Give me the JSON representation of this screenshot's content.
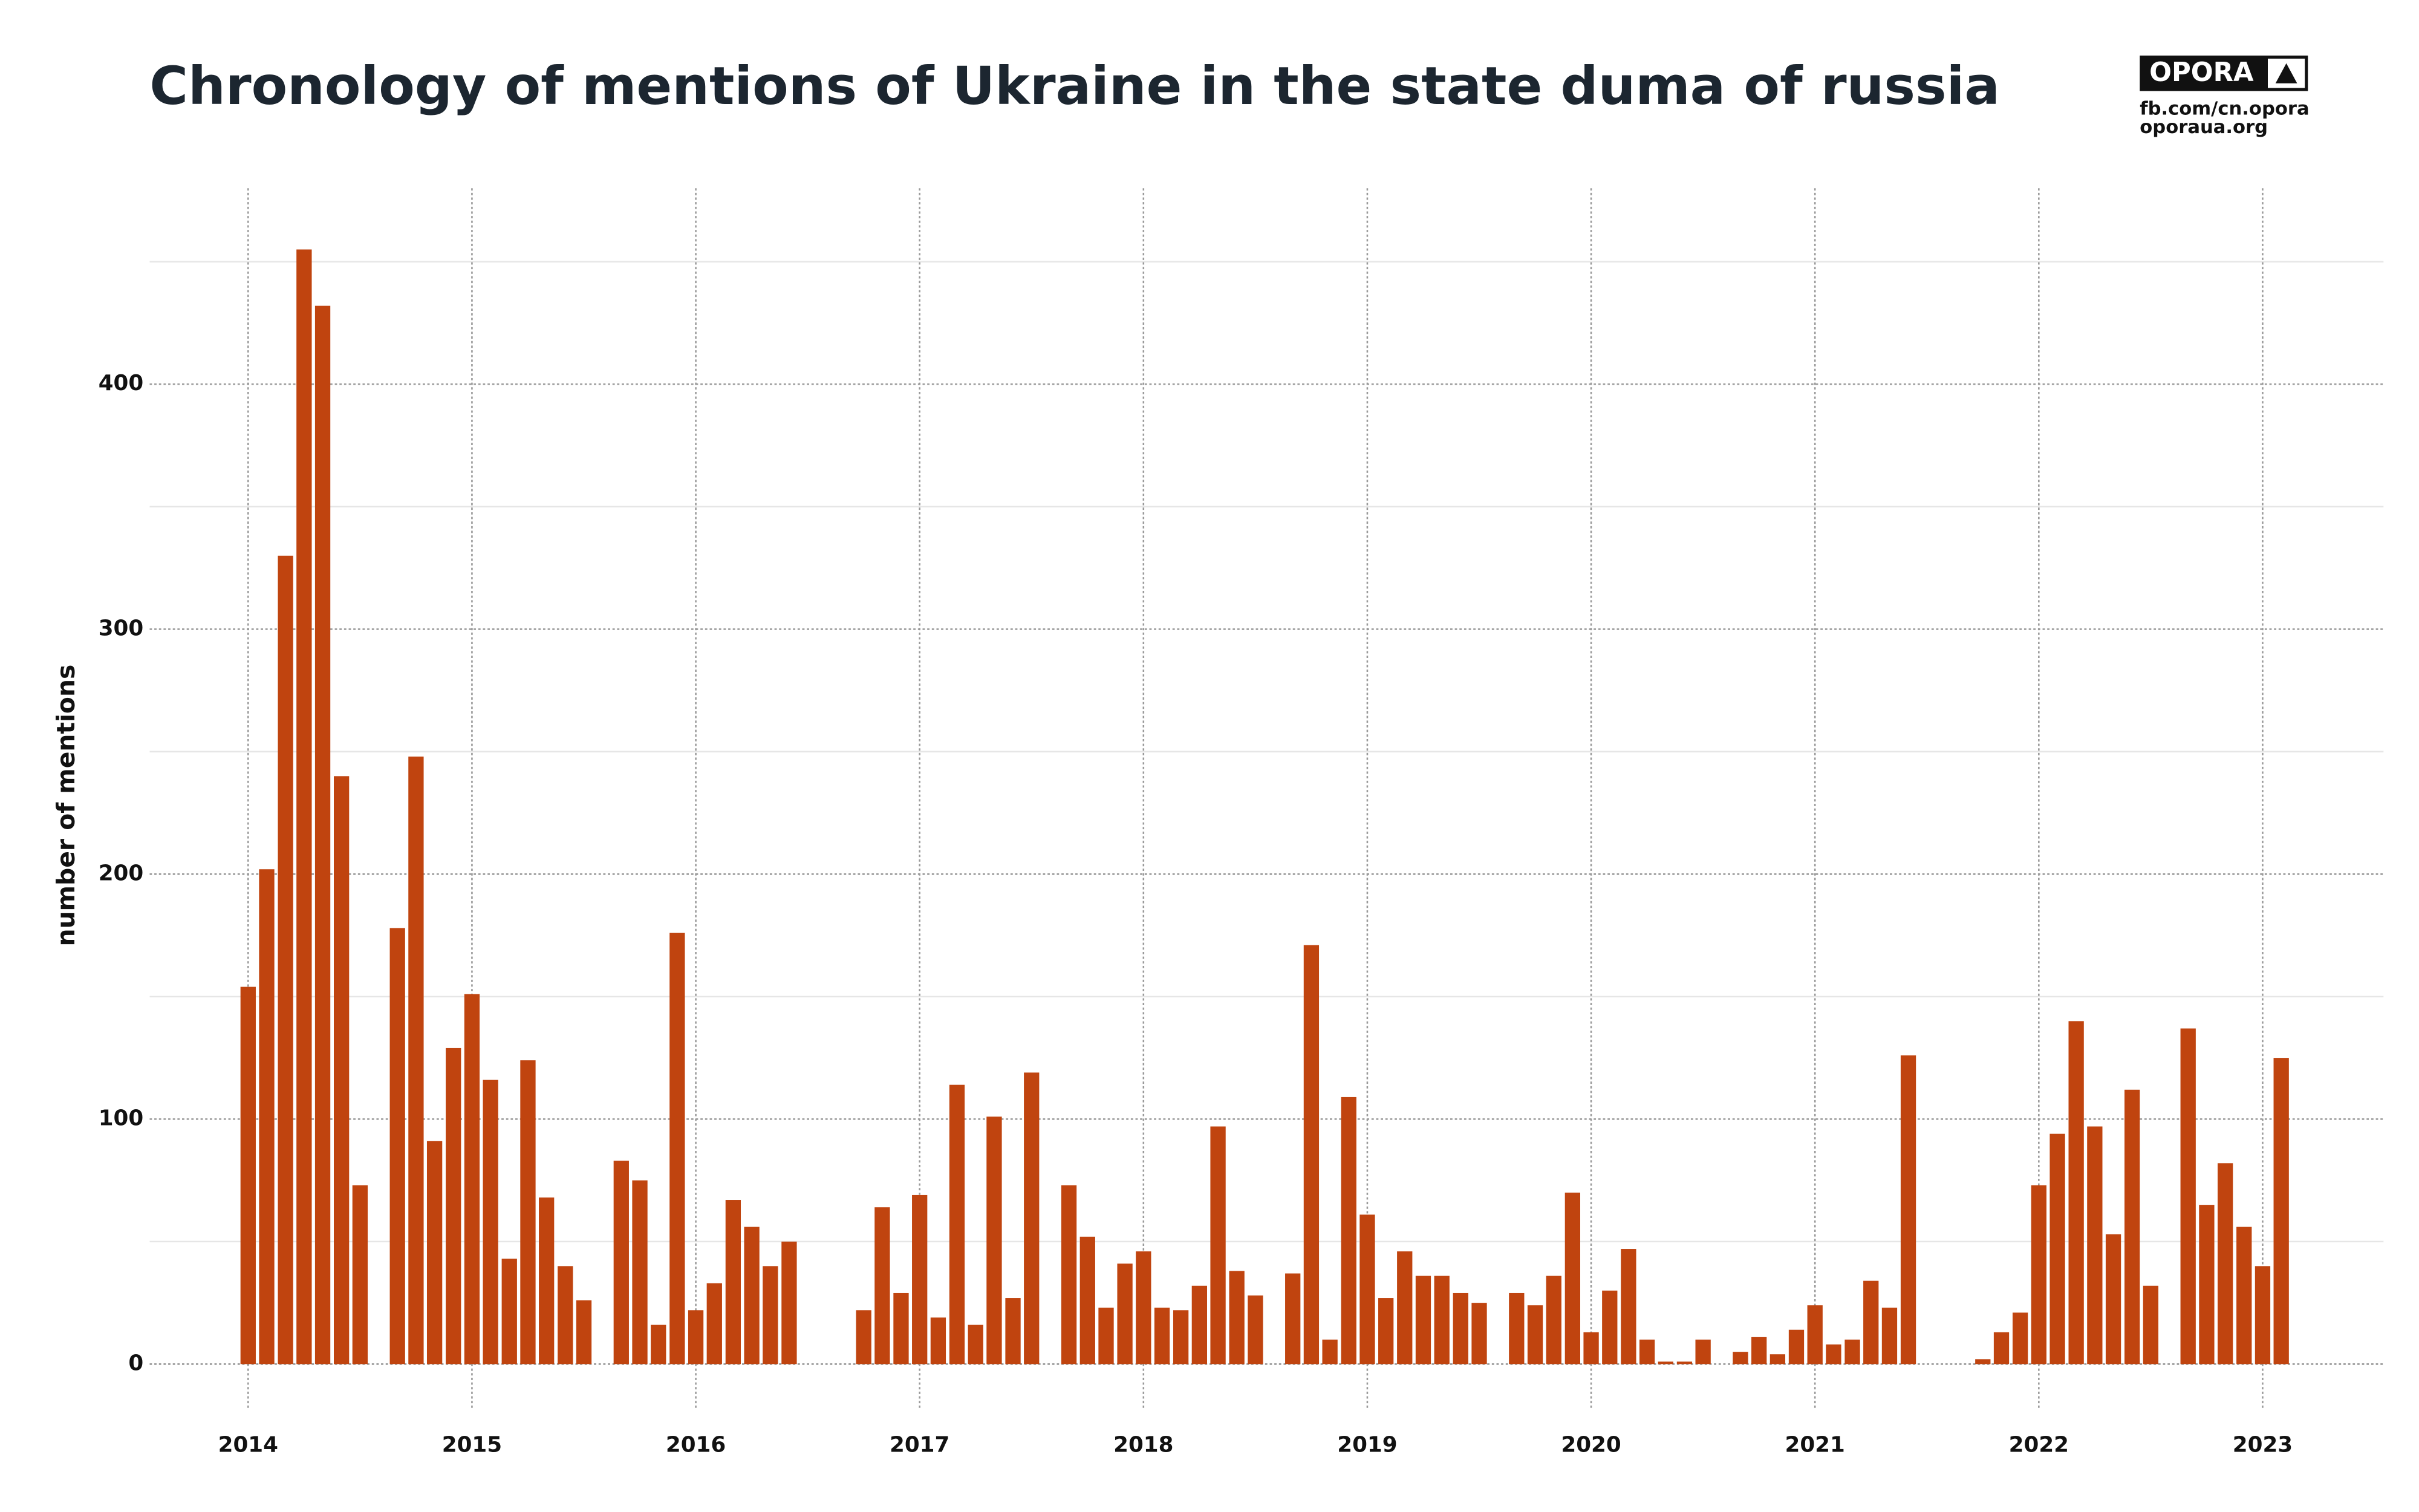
{
  "chart_data": {
    "type": "bar",
    "title": "Chronology of mentions of Ukraine in the state duma of russia",
    "ylabel": "number of mentions",
    "logo": {
      "name": "OPORA",
      "lines": [
        "fb.com/cn.opora",
        "oporaua.org"
      ]
    },
    "color": "#c0440f",
    "x": [
      2014,
      2014.083,
      2014.167,
      2014.25,
      2014.333,
      2014.417,
      2014.5,
      2014.583,
      2014.667,
      2014.75,
      2014.833,
      2014.917,
      2015,
      2015.083,
      2015.167,
      2015.25,
      2015.333,
      2015.417,
      2015.5,
      2015.583,
      2015.667,
      2015.75,
      2015.833,
      2015.917,
      2016,
      2016.083,
      2016.167,
      2016.25,
      2016.333,
      2016.417,
      2016.5,
      2016.583,
      2016.667,
      2016.75,
      2016.833,
      2016.917,
      2017,
      2017.083,
      2017.167,
      2017.25,
      2017.333,
      2017.417,
      2017.5,
      2017.583,
      2017.667,
      2017.75,
      2017.833,
      2017.917,
      2018,
      2018.083,
      2018.167,
      2018.25,
      2018.333,
      2018.417,
      2018.5,
      2018.583,
      2018.667,
      2018.75,
      2018.833,
      2018.917,
      2019,
      2019.083,
      2019.167,
      2019.25,
      2019.333,
      2019.417,
      2019.5,
      2019.583,
      2019.667,
      2019.75,
      2019.833,
      2019.917,
      2020,
      2020.083,
      2020.167,
      2020.25,
      2020.333,
      2020.417,
      2020.5,
      2020.583,
      2020.667,
      2020.75,
      2020.833,
      2020.917,
      2021,
      2021.083,
      2021.167,
      2021.25,
      2021.333,
      2021.417,
      2021.5,
      2021.583,
      2021.667,
      2021.75,
      2021.833,
      2021.917,
      2022,
      2022.083,
      2022.167,
      2022.25,
      2022.333,
      2022.417,
      2022.5,
      2022.583,
      2022.667,
      2022.75,
      2022.833,
      2022.917,
      2023,
      2023.083
    ],
    "values": [
      154,
      202,
      330,
      455,
      432,
      240,
      73,
      0,
      178,
      248,
      91,
      129,
      151,
      116,
      43,
      124,
      68,
      40,
      26,
      0,
      83,
      75,
      16,
      176,
      22,
      33,
      67,
      56,
      40,
      50,
      0,
      0,
      0,
      22,
      64,
      29,
      69,
      19,
      114,
      16,
      101,
      27,
      119,
      0,
      73,
      52,
      23,
      41,
      46,
      23,
      22,
      32,
      97,
      38,
      28,
      0,
      37,
      171,
      10,
      109,
      61,
      27,
      46,
      36,
      36,
      29,
      25,
      0,
      29,
      24,
      36,
      70,
      13,
      30,
      47,
      10,
      1,
      1,
      10,
      0,
      5,
      11,
      4,
      14,
      24,
      8,
      10,
      34,
      23,
      126,
      0,
      0,
      0,
      2,
      13,
      21,
      73,
      94,
      140,
      97,
      53,
      112,
      32,
      0,
      137,
      65,
      82,
      56,
      40,
      125
    ],
    "xlim": [
      2013.56,
      2023.54
    ],
    "xticks": [
      2014,
      2015,
      2016,
      2017,
      2018,
      2019,
      2020,
      2021,
      2022,
      2023
    ],
    "ylim": [
      -10,
      480
    ],
    "yticks": [
      0,
      100,
      200,
      300,
      400
    ],
    "yminorticks": [
      50,
      150,
      250,
      350,
      450
    ],
    "grid": true
  }
}
